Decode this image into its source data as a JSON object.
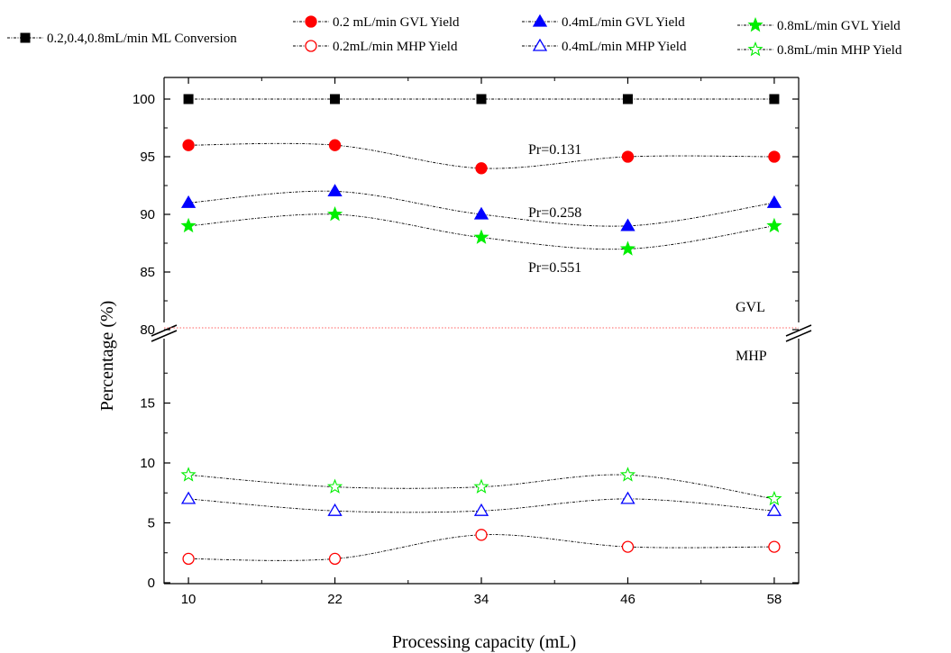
{
  "chart_data": {
    "type": "line",
    "xlabel": "Processing capacity (mL)",
    "ylabel": "Percentage (%)",
    "x": [
      10,
      22,
      34,
      46,
      58
    ],
    "xlim": [
      8,
      60
    ],
    "x_tick_labels": [
      "10",
      "22",
      "34",
      "46",
      "58"
    ],
    "y_axis_break": {
      "lower_range": [
        0,
        20
      ],
      "upper_range": [
        80,
        101
      ]
    },
    "y_tick_labels_lower": [
      "0",
      "5",
      "10",
      "15"
    ],
    "y_tick_labels_upper": [
      "80",
      "85",
      "90",
      "95",
      "100"
    ],
    "region_labels": {
      "upper": "GVL",
      "lower": "MHP"
    },
    "annotations": [
      "Pr=0.131",
      "Pr=0.258",
      "Pr=0.551"
    ],
    "legend_placement": "top, outside plot area",
    "grid": false,
    "series": [
      {
        "name": "0.2,0.4,0.8mL/min ML Conversion",
        "marker": "filled-square",
        "color": "#000000",
        "values": [
          100,
          100,
          100,
          100,
          100
        ]
      },
      {
        "name": "0.2 mL/min GVL Yield",
        "marker": "filled-circle",
        "color": "#ff0000",
        "values": [
          96,
          96,
          94,
          95,
          95
        ]
      },
      {
        "name": "0.2mL/min MHP Yield",
        "marker": "open-circle",
        "color": "#ff0000",
        "values": [
          2,
          2,
          4,
          3,
          3
        ]
      },
      {
        "name": "0.4mL/min GVL Yield",
        "marker": "filled-triangle",
        "color": "#0000ff",
        "values": [
          91,
          92,
          90,
          89,
          91
        ]
      },
      {
        "name": "0.4mL/min MHP Yield",
        "marker": "open-triangle",
        "color": "#0000ff",
        "values": [
          7,
          6,
          6,
          7,
          6
        ]
      },
      {
        "name": "0.8mL/min GVL Yield",
        "marker": "filled-star",
        "color": "#00ee00",
        "values": [
          89,
          90,
          88,
          87,
          89
        ]
      },
      {
        "name": "0.8mL/min MHP Yield",
        "marker": "open-star",
        "color": "#00ee00",
        "values": [
          9,
          8,
          8,
          9,
          7
        ]
      }
    ]
  }
}
